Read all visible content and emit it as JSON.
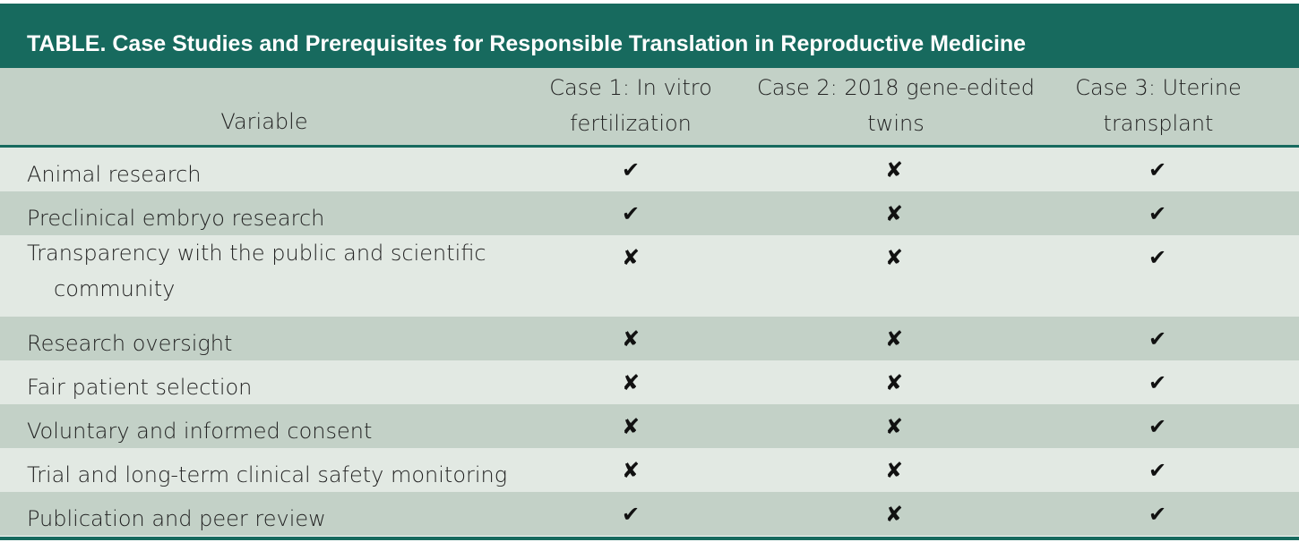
{
  "table": {
    "title": "TABLE. Case Studies and Prerequisites for Responsible Translation in Reproductive Medicine",
    "headers": {
      "variable": "Variable",
      "case1_line1": "Case 1: In vitro",
      "case1_line2": "fertilization",
      "case2_line1": "Case 2: 2018 gene-edited",
      "case2_line2": "twins",
      "case3_line1": "Case 3: Uterine",
      "case3_line2": "transplant"
    },
    "rows": [
      {
        "label": "Animal research",
        "case1": "✔",
        "case2": "✘",
        "case3": "✔"
      },
      {
        "label": "Preclinical embryo research",
        "case1": "✔",
        "case2": "✘",
        "case3": "✔"
      },
      {
        "label": "Transparency with the public and scientific",
        "label_line2": "community",
        "case1": "✘",
        "case2": "✘",
        "case3": "✔"
      },
      {
        "label": "Research oversight",
        "case1": "✘",
        "case2": "✘",
        "case3": "✔"
      },
      {
        "label": "Fair patient selection",
        "case1": "✘",
        "case2": "✘",
        "case3": "✔"
      },
      {
        "label": "Voluntary and informed consent",
        "case1": "✘",
        "case2": "✘",
        "case3": "✔"
      },
      {
        "label": "Trial and long-term clinical safety monitoring",
        "case1": "✘",
        "case2": "✘",
        "case3": "✔"
      },
      {
        "label": "Publication and peer review",
        "case1": "✔",
        "case2": "✘",
        "case3": "✔"
      }
    ],
    "colors": {
      "header_band": "#176a5e",
      "row_light": "#e2e9e3",
      "row_dark": "#c3d1c7"
    },
    "icons": {
      "check": "check-icon",
      "cross": "cross-icon"
    }
  }
}
